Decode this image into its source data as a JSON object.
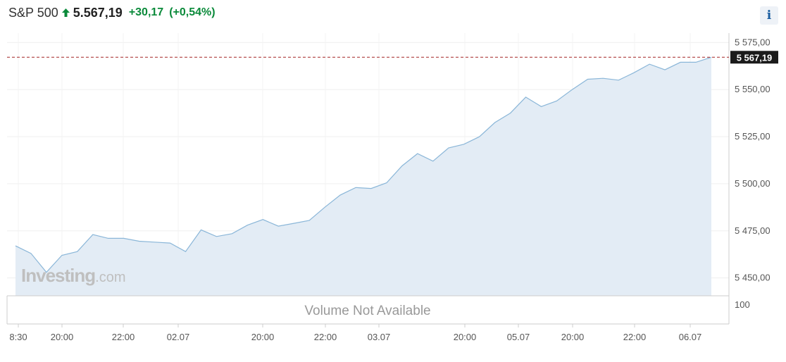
{
  "header": {
    "symbol": "S&P 500",
    "last_price": "5.567,19",
    "change": "+30,17",
    "change_pct": "(+0,54%)",
    "info_label": "i",
    "up_color": "#0a8a3a"
  },
  "chart_data": {
    "type": "area",
    "y_ticks": [
      "5 575,00",
      "5 550,00",
      "5 525,00",
      "5 500,00",
      "5 475,00",
      "5 450,00"
    ],
    "y_tick_values": [
      5575,
      5550,
      5525,
      5500,
      5475,
      5450
    ],
    "ylim": [
      5440.5,
      5580
    ],
    "x_ticks": [
      "8:30",
      "20:00",
      "22:00",
      "02.07",
      "20:00",
      "22:00",
      "03.07",
      "20:00",
      "05.07",
      "20:00",
      "22:00",
      "06.07"
    ],
    "values": [
      5467,
      5463,
      5453,
      5462,
      5464,
      5473,
      5471,
      5471,
      5469.5,
      5469,
      5468.5,
      5464,
      5475.5,
      5472,
      5473.5,
      5478,
      5481,
      5477.5,
      5479,
      5480.5,
      5487.5,
      5494,
      5498,
      5497.5,
      5500.5,
      5509.5,
      5516,
      5512,
      5519,
      5521,
      5525,
      5532.5,
      5537.5,
      5546,
      5541,
      5544,
      5550,
      5555.5,
      5556,
      5555,
      5559,
      5563.5,
      5560.5,
      5564.5,
      5564.5,
      5567.19
    ],
    "last_value": "5 567,19",
    "last_value_number": 5567.19,
    "volume_label": "Volume Not Available",
    "volume_axis_label": "100",
    "watermark_main": "Investing",
    "watermark_suffix": ".com",
    "line_color": "#8ab6d8",
    "fill_color": "#e3ecf5",
    "reference_line_color": "#a32424",
    "price_tag_color": "#1b1b1b",
    "grid": true
  }
}
